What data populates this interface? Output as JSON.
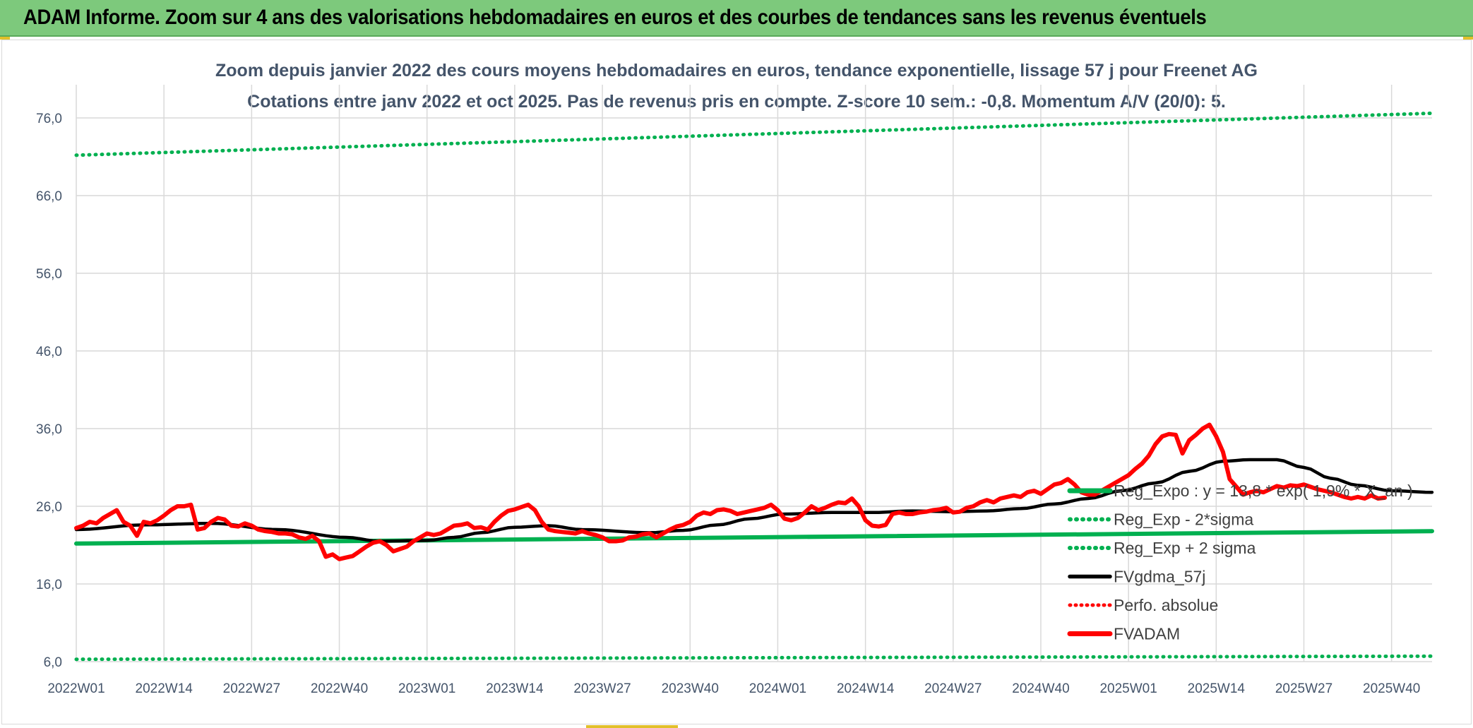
{
  "banner": {
    "title": "ADAM Informe. Zoom sur 4 ans des valorisations hebdomadaires en euros et des courbes de tendances sans les revenus éventuels"
  },
  "colors": {
    "banner_bg": "#7dc97c",
    "axis_text": "#44546a",
    "grid": "#d9d9d9",
    "reg_green": "#00b050",
    "sma_black": "#000000",
    "price_red": "#ff0000"
  },
  "chart_data": {
    "type": "line",
    "title": "Zoom depuis janvier 2022 des cours moyens hebdomadaires en euros, tendance exponentielle, lissage 57 j pour Freenet AG",
    "subtitle": "Cotations entre janv 2022 et oct 2025. Pas de revenus pris en compte. Z-score 10 sem.: -0,8. Momentum A/V (20/0): 5.",
    "xlabel": "",
    "ylabel": "",
    "ylim": [
      6,
      80
    ],
    "grid": true,
    "legend_position": "right",
    "x_ticks": [
      "2022W01",
      "2022W14",
      "2022W27",
      "2022W40",
      "2023W01",
      "2023W14",
      "2023W27",
      "2023W40",
      "2024W01",
      "2024W14",
      "2024W27",
      "2024W40",
      "2025W01",
      "2025W14",
      "2025W27",
      "2025W40"
    ],
    "y_ticks": [
      "6,0",
      "16,0",
      "26,0",
      "36,0",
      "46,0",
      "56,0",
      "66,0",
      "76,0"
    ],
    "y_tick_values": [
      6,
      16,
      26,
      36,
      46,
      56,
      66,
      76
    ],
    "x_range_weeks": [
      0,
      201
    ],
    "series": [
      {
        "name": "Reg_Expo : y = 13,8 * exp( 1,9% * X_an )",
        "style": "solid-green",
        "keyframes": [
          [
            0,
            21.2
          ],
          [
            201,
            22.8
          ]
        ]
      },
      {
        "name": "Reg_Exp - 2*sigma",
        "style": "dotted-green",
        "keyframes": [
          [
            0,
            6.3
          ],
          [
            201,
            6.7
          ]
        ]
      },
      {
        "name": "Reg_Exp + 2 sigma",
        "style": "dotted-green",
        "keyframes": [
          [
            0,
            71.2
          ],
          [
            201,
            76.6
          ]
        ]
      },
      {
        "name": "FVgdma_57j",
        "style": "solid-black",
        "keyframes": [
          [
            0,
            23.0
          ],
          [
            10,
            23.6
          ],
          [
            20,
            23.8
          ],
          [
            30,
            23.0
          ],
          [
            40,
            22.0
          ],
          [
            45,
            21.5
          ],
          [
            52,
            21.6
          ],
          [
            56,
            22.0
          ],
          [
            60,
            22.6
          ],
          [
            65,
            23.3
          ],
          [
            70,
            23.5
          ],
          [
            75,
            23.0
          ],
          [
            85,
            22.6
          ],
          [
            90,
            22.9
          ],
          [
            95,
            23.6
          ],
          [
            100,
            24.4
          ],
          [
            105,
            25.0
          ],
          [
            112,
            25.2
          ],
          [
            118,
            25.2
          ],
          [
            124,
            25.4
          ],
          [
            130,
            25.3
          ],
          [
            135,
            25.4
          ],
          [
            140,
            25.7
          ],
          [
            145,
            26.3
          ],
          [
            150,
            27.0
          ],
          [
            155,
            28.0
          ],
          [
            160,
            29.0
          ],
          [
            165,
            30.5
          ],
          [
            170,
            31.8
          ],
          [
            174,
            32.0
          ],
          [
            178,
            32.0
          ],
          [
            182,
            31.0
          ],
          [
            186,
            29.6
          ],
          [
            190,
            28.7
          ],
          [
            195,
            28.0
          ],
          [
            201,
            27.8
          ]
        ]
      },
      {
        "name": "Perfo. absolue",
        "style": "dotted-red",
        "keyframes": []
      },
      {
        "name": "FVADAM",
        "style": "solid-red-thick",
        "keyframes": [
          [
            0,
            23.2
          ],
          [
            1,
            23.5
          ],
          [
            2,
            24.0
          ],
          [
            3,
            23.8
          ],
          [
            4,
            24.5
          ],
          [
            5,
            25.0
          ],
          [
            6,
            25.5
          ],
          [
            7,
            24.0
          ],
          [
            8,
            23.5
          ],
          [
            9,
            22.2
          ],
          [
            10,
            24.0
          ],
          [
            11,
            23.8
          ],
          [
            12,
            24.2
          ],
          [
            13,
            24.8
          ],
          [
            14,
            25.5
          ],
          [
            15,
            26.0
          ],
          [
            16,
            26.0
          ],
          [
            17,
            26.2
          ],
          [
            18,
            23.0
          ],
          [
            19,
            23.2
          ],
          [
            20,
            24.0
          ],
          [
            21,
            24.5
          ],
          [
            22,
            24.3
          ],
          [
            23,
            23.5
          ],
          [
            24,
            23.4
          ],
          [
            25,
            23.8
          ],
          [
            26,
            23.5
          ],
          [
            27,
            23.0
          ],
          [
            28,
            22.8
          ],
          [
            29,
            22.7
          ],
          [
            30,
            22.5
          ],
          [
            31,
            22.5
          ],
          [
            32,
            22.4
          ],
          [
            33,
            22.0
          ],
          [
            34,
            21.8
          ],
          [
            35,
            22.2
          ],
          [
            36,
            21.5
          ],
          [
            37,
            19.5
          ],
          [
            38,
            19.8
          ],
          [
            39,
            19.2
          ],
          [
            40,
            19.4
          ],
          [
            41,
            19.6
          ],
          [
            42,
            20.2
          ],
          [
            43,
            20.8
          ],
          [
            44,
            21.3
          ],
          [
            45,
            21.5
          ],
          [
            46,
            21.0
          ],
          [
            47,
            20.2
          ],
          [
            48,
            20.5
          ],
          [
            49,
            20.8
          ],
          [
            50,
            21.5
          ],
          [
            51,
            22.0
          ],
          [
            52,
            22.5
          ],
          [
            53,
            22.3
          ],
          [
            54,
            22.5
          ],
          [
            55,
            23.0
          ],
          [
            56,
            23.5
          ],
          [
            57,
            23.6
          ],
          [
            58,
            23.8
          ],
          [
            59,
            23.2
          ],
          [
            60,
            23.3
          ],
          [
            61,
            23.0
          ],
          [
            62,
            24.0
          ],
          [
            63,
            24.8
          ],
          [
            64,
            25.4
          ],
          [
            65,
            25.6
          ],
          [
            66,
            25.9
          ],
          [
            67,
            26.2
          ],
          [
            68,
            25.5
          ],
          [
            69,
            24.0
          ],
          [
            70,
            23.0
          ],
          [
            71,
            22.8
          ],
          [
            72,
            22.7
          ],
          [
            73,
            22.6
          ],
          [
            74,
            22.5
          ],
          [
            75,
            22.8
          ],
          [
            76,
            22.5
          ],
          [
            77,
            22.3
          ],
          [
            78,
            22.0
          ],
          [
            79,
            21.5
          ],
          [
            80,
            21.5
          ],
          [
            81,
            21.6
          ],
          [
            82,
            22.0
          ],
          [
            83,
            22.1
          ],
          [
            84,
            22.4
          ],
          [
            85,
            22.5
          ],
          [
            86,
            22.0
          ],
          [
            87,
            22.5
          ],
          [
            88,
            23.0
          ],
          [
            89,
            23.4
          ],
          [
            90,
            23.6
          ],
          [
            91,
            24.0
          ],
          [
            92,
            24.8
          ],
          [
            93,
            25.2
          ],
          [
            94,
            25.0
          ],
          [
            95,
            25.5
          ],
          [
            96,
            25.6
          ],
          [
            97,
            25.4
          ],
          [
            98,
            25.0
          ],
          [
            99,
            25.2
          ],
          [
            100,
            25.4
          ],
          [
            101,
            25.6
          ],
          [
            102,
            25.8
          ],
          [
            103,
            26.2
          ],
          [
            104,
            25.5
          ],
          [
            105,
            24.4
          ],
          [
            106,
            24.2
          ],
          [
            107,
            24.5
          ],
          [
            108,
            25.2
          ],
          [
            109,
            26.0
          ],
          [
            110,
            25.5
          ],
          [
            111,
            25.8
          ],
          [
            112,
            26.2
          ],
          [
            113,
            26.5
          ],
          [
            114,
            26.4
          ],
          [
            115,
            27.0
          ],
          [
            116,
            26.0
          ],
          [
            117,
            24.2
          ],
          [
            118,
            23.5
          ],
          [
            119,
            23.4
          ],
          [
            120,
            23.6
          ],
          [
            121,
            25.0
          ],
          [
            122,
            25.2
          ],
          [
            123,
            25.0
          ],
          [
            124,
            25.0
          ],
          [
            125,
            25.2
          ],
          [
            126,
            25.3
          ],
          [
            127,
            25.5
          ],
          [
            128,
            25.6
          ],
          [
            129,
            25.8
          ],
          [
            130,
            25.2
          ],
          [
            131,
            25.3
          ],
          [
            132,
            25.8
          ],
          [
            133,
            26.0
          ],
          [
            134,
            26.5
          ],
          [
            135,
            26.8
          ],
          [
            136,
            26.5
          ],
          [
            137,
            27.0
          ],
          [
            138,
            27.2
          ],
          [
            139,
            27.4
          ],
          [
            140,
            27.2
          ],
          [
            141,
            27.8
          ],
          [
            142,
            28.0
          ],
          [
            143,
            27.6
          ],
          [
            144,
            28.2
          ],
          [
            145,
            28.8
          ],
          [
            146,
            29.0
          ],
          [
            147,
            29.5
          ],
          [
            148,
            28.8
          ],
          [
            149,
            27.8
          ],
          [
            150,
            27.5
          ],
          [
            151,
            27.5
          ],
          [
            152,
            28.0
          ],
          [
            153,
            28.5
          ],
          [
            154,
            29.0
          ],
          [
            155,
            29.5
          ],
          [
            156,
            30.0
          ],
          [
            157,
            30.8
          ],
          [
            158,
            31.5
          ],
          [
            159,
            32.5
          ],
          [
            160,
            34.0
          ],
          [
            161,
            35.0
          ],
          [
            162,
            35.3
          ],
          [
            163,
            35.2
          ],
          [
            164,
            32.8
          ],
          [
            165,
            34.5
          ],
          [
            166,
            35.2
          ],
          [
            167,
            36.0
          ],
          [
            168,
            36.5
          ],
          [
            169,
            35.0
          ],
          [
            170,
            33.0
          ],
          [
            171,
            29.5
          ],
          [
            172,
            28.5
          ],
          [
            173,
            27.5
          ],
          [
            174,
            27.8
          ],
          [
            175,
            28.0
          ],
          [
            176,
            27.8
          ],
          [
            177,
            28.2
          ],
          [
            178,
            28.6
          ],
          [
            179,
            28.4
          ],
          [
            180,
            28.7
          ],
          [
            181,
            28.6
          ],
          [
            182,
            28.8
          ],
          [
            183,
            28.5
          ],
          [
            184,
            28.2
          ],
          [
            185,
            28.0
          ],
          [
            186,
            27.8
          ],
          [
            187,
            27.5
          ],
          [
            188,
            27.2
          ],
          [
            189,
            27.0
          ],
          [
            190,
            27.2
          ],
          [
            191,
            27.0
          ],
          [
            192,
            27.4
          ],
          [
            193,
            27.0
          ],
          [
            194,
            27.1
          ]
        ]
      }
    ]
  }
}
